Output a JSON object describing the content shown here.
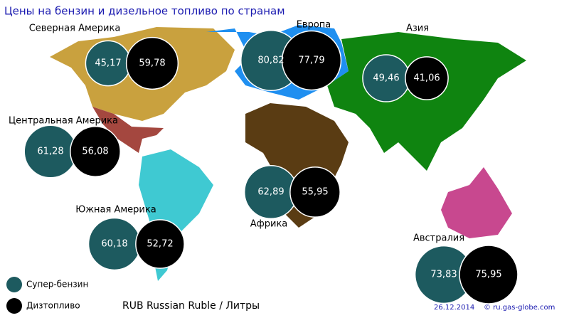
{
  "title": "Цены на бензин и дизельное топливо по странам",
  "regions": [
    "Северная Америка",
    "Европа",
    "Азия",
    "Центральная Америка",
    "Африка",
    "Южная Америка",
    "Австралия"
  ],
  "series": [
    {
      "name": "Супер-бензин",
      "color": "#1d5a5f",
      "values": [
        45.17,
        80.82,
        49.46,
        61.28,
        62.89,
        60.18,
        73.83
      ],
      "value_labels": [
        "45,17",
        "80,82",
        "49,46",
        "61,28",
        "62,89",
        "60,18",
        "73,83"
      ]
    },
    {
      "name": "Дизтопливо",
      "color": "#000000",
      "values": [
        59.78,
        77.79,
        41.06,
        56.08,
        55.95,
        52.72,
        75.95
      ],
      "value_labels": [
        "59,78",
        "77,79",
        "41,06",
        "56,08",
        "55,95",
        "52,72",
        "75,95"
      ]
    }
  ],
  "unit": "RUB Russian Ruble / Литры",
  "date": "26.12.2014",
  "source": "© ru.gas-globe.com"
}
